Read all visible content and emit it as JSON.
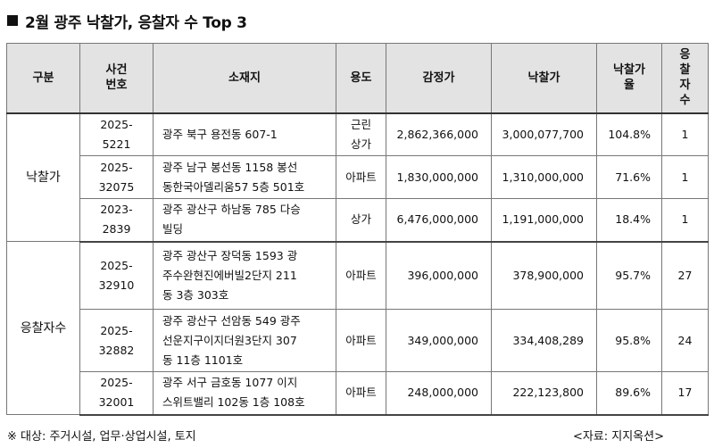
{
  "title": "2월 광주 낙찰가, 응찰자 수 Top 3",
  "headers": {
    "group": "구분",
    "case_no": "사건\n번호",
    "address": "소재지",
    "usage": "용도",
    "appraisal": "감정가",
    "winning_bid": "낙찰가",
    "ratio": "낙찰가\n율",
    "bidders": "응\n찰\n자\n수"
  },
  "groups": [
    {
      "label": "낙찰가"
    },
    {
      "label": "응찰자수"
    }
  ],
  "rows": [
    {
      "case_no": "2025-\n5221",
      "address": "광주 북구 용전동 607-1",
      "usage": "근린\n상가",
      "appraisal": "2,862,366,000",
      "winning_bid": "3,000,077,700",
      "ratio": "104.8%",
      "bidders": "1"
    },
    {
      "case_no": "2025-\n32075",
      "address": "광주 남구 봉선동 1158 봉선\n동한국아델리움57 5층 501호",
      "usage": "아파트",
      "appraisal": "1,830,000,000",
      "winning_bid": "1,310,000,000",
      "ratio": "71.6%",
      "bidders": "1"
    },
    {
      "case_no": "2023-\n2839",
      "address": "광주 광산구 하남동 785 다승\n빌딩",
      "usage": "상가",
      "appraisal": "6,476,000,000",
      "winning_bid": "1,191,000,000",
      "ratio": "18.4%",
      "bidders": "1"
    },
    {
      "case_no": "2025-\n32910",
      "address": "광주 광산구 장덕동 1593 광\n주수완현진에버빌2단지 211\n동 3층 303호",
      "usage": "아파트",
      "appraisal": "396,000,000",
      "winning_bid": "378,900,000",
      "ratio": "95.7%",
      "bidders": "27"
    },
    {
      "case_no": "2025-\n32882",
      "address": "광주 광산구 선암동 549 광주\n선운지구이지더원3단지 307\n동 11층 1101호",
      "usage": "아파트",
      "appraisal": "349,000,000",
      "winning_bid": "334,408,289",
      "ratio": "95.8%",
      "bidders": "24"
    },
    {
      "case_no": "2025-\n32001",
      "address": "광주 서구 금호동 1077 이지\n스위트밸리 102동 1층 108호",
      "usage": "아파트",
      "appraisal": "248,000,000",
      "winning_bid": "222,123,800",
      "ratio": "89.6%",
      "bidders": "17"
    }
  ],
  "footer": {
    "note": "※ 대상: 주거시설, 업무·상업시설, 토지",
    "source": "<자료: 지지옥션>"
  }
}
